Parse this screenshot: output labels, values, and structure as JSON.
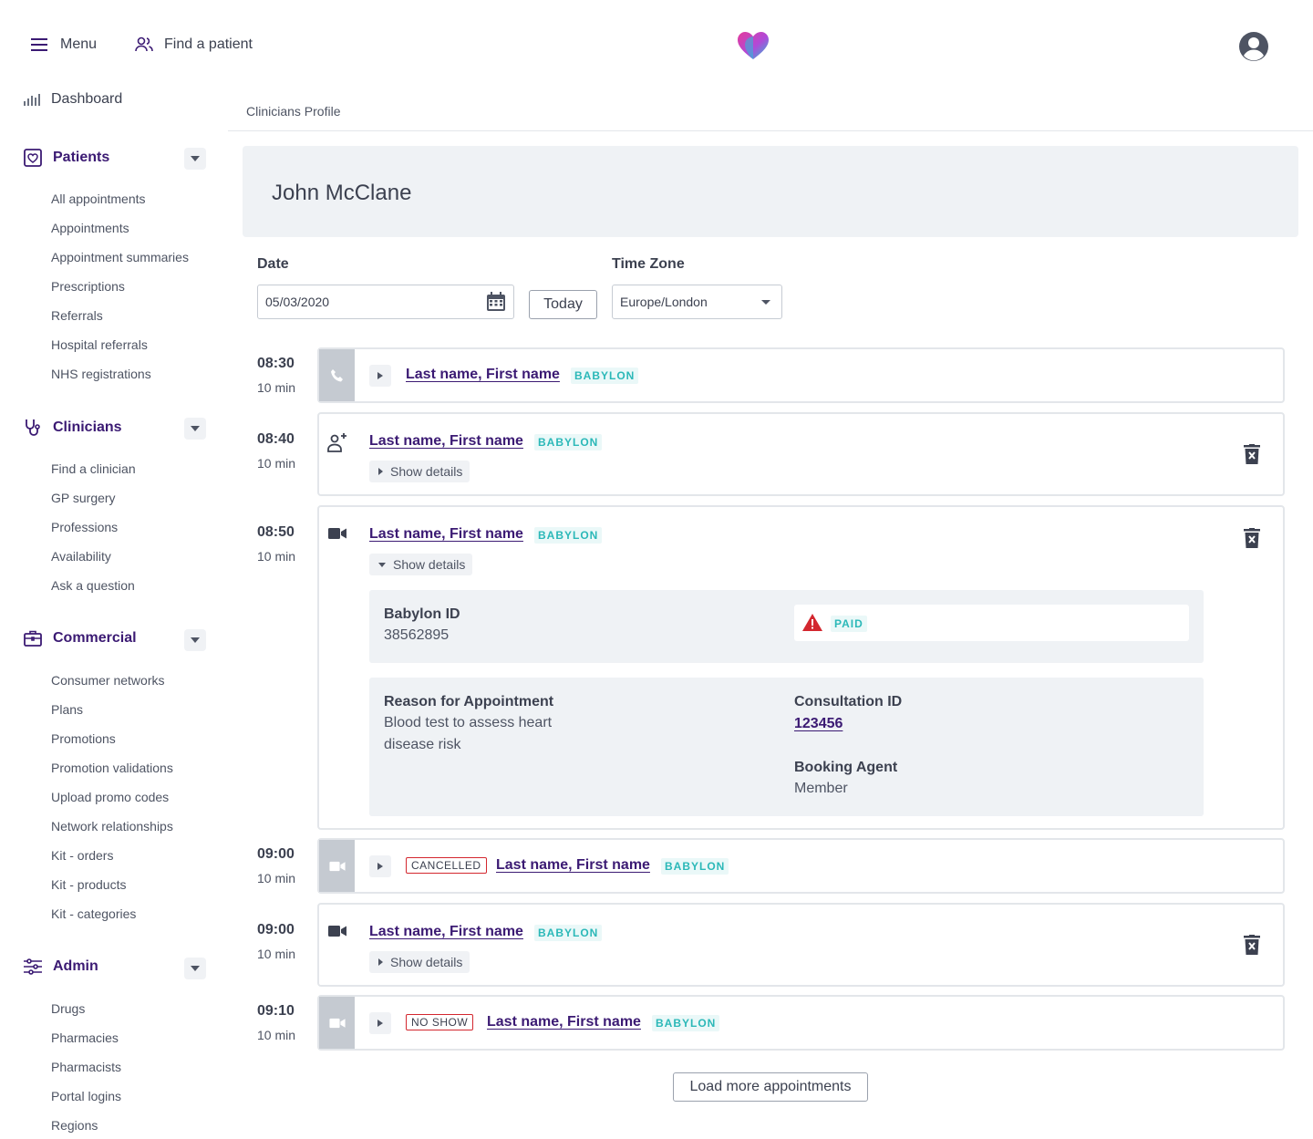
{
  "topbar": {
    "menu_label": "Menu",
    "find_patient_label": "Find a patient"
  },
  "sidebar": {
    "dashboard": "Dashboard",
    "patients": {
      "title": "Patients",
      "items": [
        "All appointments",
        "Appointments",
        "Appointment summaries",
        "Prescriptions",
        "Referrals",
        "Hospital referrals",
        "NHS registrations"
      ]
    },
    "clinicians": {
      "title": "Clinicians",
      "items": [
        "Find a clinician",
        "GP surgery",
        "Professions",
        "Availability",
        "Ask a question"
      ]
    },
    "commercial": {
      "title": "Commercial",
      "items": [
        "Consumer networks",
        "Plans",
        "Promotions",
        "Promotion validations",
        "Upload promo codes",
        "Network relationships",
        "Kit - orders",
        "Kit - products",
        "Kit - categories"
      ]
    },
    "admin": {
      "title": "Admin",
      "items": [
        "Drugs",
        "Pharmacies",
        "Pharmacists",
        "Portal logins",
        "Regions"
      ]
    }
  },
  "breadcrumb": "Clinicians Profile",
  "profile": {
    "name": "John McClane"
  },
  "filters": {
    "date_label": "Date",
    "date_value": "05/03/2020",
    "today_label": "Today",
    "timezone_label": "Time Zone",
    "timezone_value": "Europe/London"
  },
  "appointments": [
    {
      "time": "08:30",
      "duration": "10 min",
      "patient": "Last name, First name",
      "tag": "BABYLON",
      "status": "",
      "type": "phone"
    },
    {
      "time": "08:40",
      "duration": "10 min",
      "patient": "Last name, First name",
      "tag": "BABYLON",
      "show_details": "Show details",
      "type": "in-person"
    },
    {
      "time": "08:50",
      "duration": "10 min",
      "patient": "Last name, First name",
      "tag": "BABYLON",
      "show_details": "Show details",
      "type": "video",
      "details": {
        "babylon_id_label": "Babylon ID",
        "babylon_id": "38562895",
        "payment_status": "PAID",
        "reason_label": "Reason for Appointment",
        "reason": "Blood test to assess heart disease risk",
        "consultation_id_label": "Consultation ID",
        "consultation_id": "123456",
        "booking_agent_label": "Booking Agent",
        "booking_agent": "Member"
      }
    },
    {
      "time": "09:00",
      "duration": "10 min",
      "patient": "Last name, First name",
      "tag": "BABYLON",
      "status": "CANCELLED",
      "type": "video"
    },
    {
      "time": "09:00",
      "duration": "10 min",
      "patient": "Last name, First name",
      "tag": "BABYLON",
      "show_details": "Show details",
      "type": "video"
    },
    {
      "time": "09:10",
      "duration": "10 min",
      "patient": "Last name, First name",
      "tag": "BABYLON",
      "status": "NO SHOW",
      "type": "video"
    }
  ],
  "load_more_label": "Load more appointments",
  "colors": {
    "brand_purple": "#3b1a73",
    "tag_teal": "#2bb8b8",
    "status_red": "#d3272f"
  }
}
